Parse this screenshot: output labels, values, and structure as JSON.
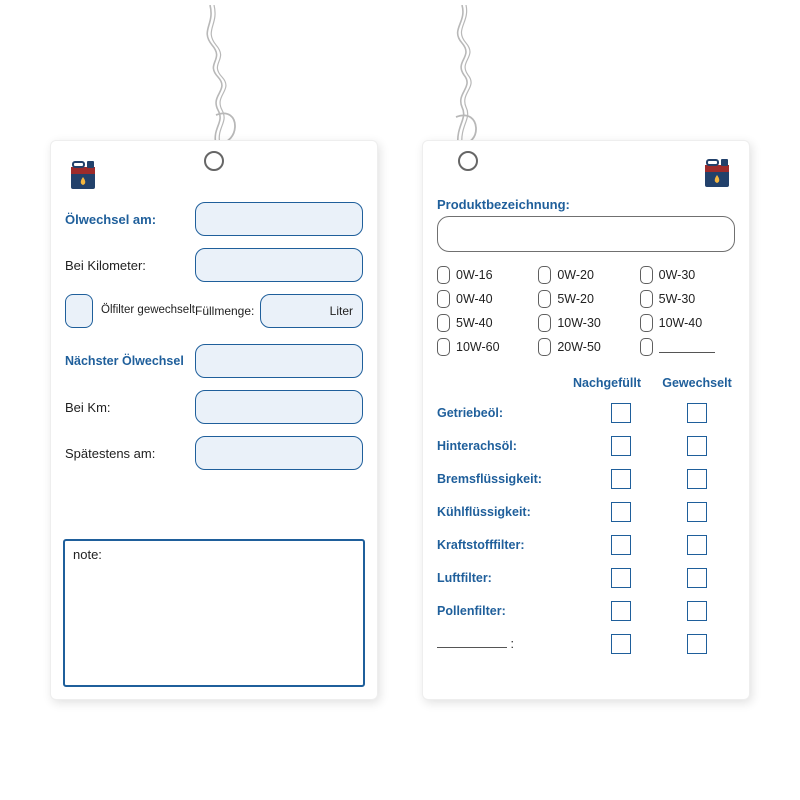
{
  "colors": {
    "blue": "#1f5f9b",
    "slot_fill": "#eaf1f9",
    "grey_border": "#707070",
    "text": "#222222",
    "card_bg": "#ffffff",
    "shadow": "rgba(0,0,0,0.12)"
  },
  "left": {
    "labels": {
      "oelwechsel_am": "Ölwechsel am:",
      "bei_kilometer": "Bei Kilometer:",
      "oelfilter_gewechselt": "Ölfilter gewechselt",
      "fuellmenge": "Füllmenge:",
      "liter": "Liter",
      "naechster_oelwechsel": "Nächster Ölwechsel",
      "bei_km": "Bei Km:",
      "spaetestens_am": "Spätestens am:",
      "note": "note:"
    }
  },
  "right": {
    "labels": {
      "produktbezeichnung": "Produktbezeichnung:",
      "nachgefuellt": "Nachgefüllt",
      "gewechselt": "Gewechselt"
    },
    "viscosities": [
      "0W-16",
      "0W-20",
      "0W-30",
      "0W-40",
      "5W-20",
      "5W-30",
      "5W-40",
      "10W-30",
      "10W-40",
      "10W-60",
      "20W-50"
    ],
    "fluids": [
      "Getriebeöl:",
      "Hinterachsöl:",
      "Bremsflüssigkeit:",
      "Kühlflüssigkeit:",
      "Kraftstofffilter:",
      "Luftfilter:",
      "Pollenfilter:"
    ]
  }
}
